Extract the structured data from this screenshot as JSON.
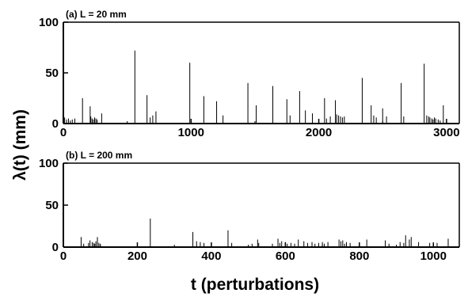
{
  "chart_data": {
    "ylabel": "λ(t) (mm)",
    "xlabel": "t (perturbations)",
    "panels": [
      {
        "type": "bar",
        "label": "(a) L = 20 mm",
        "xlim": [
          0,
          3100
        ],
        "ylim": [
          0,
          100
        ],
        "xticks": [
          0,
          1000,
          2000,
          3000
        ],
        "yticks": [
          0,
          50,
          100
        ],
        "x": [
          10,
          25,
          40,
          55,
          70,
          90,
          150,
          210,
          215,
          225,
          235,
          245,
          255,
          265,
          300,
          560,
          655,
          680,
          700,
          725,
          990,
          1100,
          1200,
          1250,
          1445,
          1510,
          1640,
          1750,
          1775,
          1850,
          1895,
          1950,
          2045,
          2060,
          2090,
          2130,
          2140,
          2155,
          2170,
          2185,
          2200,
          2340,
          2410,
          2430,
          2450,
          2500,
          2530,
          2645,
          2665,
          2825,
          2845,
          2860,
          2870,
          2885,
          2895,
          2905,
          2915,
          2935,
          2950,
          2975
        ],
        "values": [
          6,
          4,
          5,
          3,
          4,
          5,
          25,
          17,
          7,
          5,
          4,
          6,
          5,
          4,
          10,
          72,
          28,
          6,
          8,
          12,
          60,
          27,
          22,
          8,
          40,
          18,
          37,
          24,
          8,
          32,
          13,
          10,
          25,
          5,
          7,
          23,
          9,
          8,
          7,
          6,
          7,
          45,
          18,
          8,
          6,
          15,
          7,
          40,
          7,
          59,
          8,
          7,
          6,
          5,
          4,
          6,
          5,
          4,
          3,
          18
        ]
      },
      {
        "type": "bar",
        "label": "(b) L = 200 mm",
        "xlim": [
          0,
          1070
        ],
        "ylim": [
          0,
          100
        ],
        "xticks": [
          0,
          200,
          400,
          600,
          800,
          1000
        ],
        "yticks": [
          0,
          50,
          100
        ],
        "x": [
          48,
          55,
          68,
          72,
          78,
          82,
          85,
          88,
          92,
          96,
          100,
          235,
          350,
          360,
          370,
          380,
          445,
          455,
          510,
          525,
          528,
          565,
          580,
          585,
          590,
          600,
          605,
          615,
          625,
          635,
          650,
          660,
          672,
          680,
          690,
          700,
          705,
          715,
          745,
          750,
          755,
          760,
          765,
          775,
          820,
          870,
          880,
          910,
          920,
          925,
          935,
          940,
          960,
          990,
          1000,
          1010,
          1040
        ],
        "values": [
          12,
          4,
          5,
          8,
          6,
          5,
          4,
          7,
          12,
          5,
          4,
          34,
          18,
          7,
          6,
          5,
          20,
          5,
          4,
          9,
          5,
          4,
          10,
          5,
          7,
          6,
          4,
          5,
          4,
          9,
          7,
          5,
          6,
          4,
          5,
          6,
          4,
          6,
          9,
          7,
          8,
          4,
          6,
          5,
          9,
          8,
          4,
          6,
          5,
          14,
          9,
          12,
          6,
          5,
          4,
          5,
          10
        ]
      }
    ]
  }
}
